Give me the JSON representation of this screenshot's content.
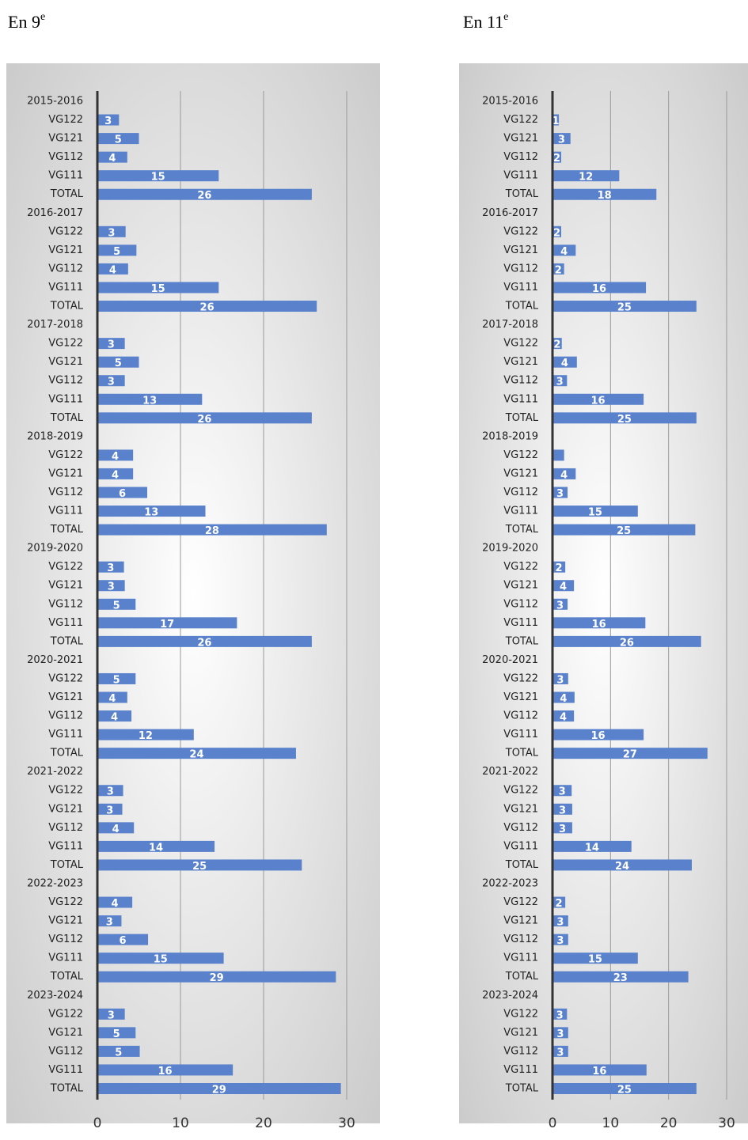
{
  "chart_data": [
    {
      "type": "bar",
      "orientation": "horizontal",
      "title": "En 9",
      "title_sup": "e",
      "color": "#5a82cc",
      "categories": [
        "2015-2016",
        "VG122",
        "VG121",
        "VG112",
        "VG111",
        "TOTAL",
        "2016-2017",
        "VG122",
        "VG121",
        "VG112",
        "VG111",
        "TOTAL",
        "2017-2018",
        "VG122",
        "VG121",
        "VG112",
        "VG111",
        "TOTAL",
        "2018-2019",
        "VG122",
        "VG121",
        "VG112",
        "VG111",
        "TOTAL",
        "2019-2020",
        "VG122",
        "VG121",
        "VG112",
        "VG111",
        "TOTAL",
        "2020-2021",
        "VG122",
        "VG121",
        "VG112",
        "VG111",
        "TOTAL",
        "2021-2022",
        "VG122",
        "VG121",
        "VG112",
        "VG111",
        "TOTAL",
        "2022-2023",
        "VG122",
        "VG121",
        "VG112",
        "VG111",
        "TOTAL",
        "2023-2024",
        "VG122",
        "VG121",
        "VG112",
        "VG111",
        "TOTAL"
      ],
      "values": [
        null,
        2.6,
        5.0,
        3.6,
        14.6,
        25.8,
        null,
        3.4,
        4.7,
        3.7,
        14.6,
        26.4,
        null,
        3.3,
        5.0,
        3.3,
        12.6,
        25.8,
        null,
        4.3,
        4.3,
        6.0,
        13.0,
        27.6,
        null,
        3.2,
        3.3,
        4.6,
        16.8,
        25.8,
        null,
        4.6,
        3.6,
        4.1,
        11.6,
        23.9,
        null,
        3.1,
        3.0,
        4.4,
        14.1,
        24.6,
        null,
        4.2,
        2.9,
        6.1,
        15.2,
        28.7,
        null,
        3.3,
        4.6,
        5.1,
        16.3,
        29.3
      ],
      "value_labels": [
        null,
        "3",
        "5",
        "4",
        "15",
        "26",
        null,
        "3",
        "5",
        "4",
        "15",
        "26",
        null,
        "3",
        "5",
        "3",
        "13",
        "26",
        null,
        "4",
        "4",
        "6",
        "13",
        "28",
        null,
        "3",
        "3",
        "5",
        "17",
        "26",
        null,
        "5",
        "4",
        "4",
        "12",
        "24",
        null,
        "3",
        "3",
        "4",
        "14",
        "25",
        null,
        "4",
        "3",
        "6",
        "15",
        "29",
        null,
        "3",
        "5",
        "5",
        "16",
        "29"
      ],
      "xlim": [
        0,
        30
      ],
      "xticks": [
        0,
        10,
        20,
        30
      ],
      "grid": true
    },
    {
      "type": "bar",
      "orientation": "horizontal",
      "title": "En 11",
      "title_sup": "e",
      "color": "#5a82cc",
      "categories": [
        "2015-2016",
        "VG122",
        "VG121",
        "VG112",
        "VG111",
        "TOTAL",
        "2016-2017",
        "VG122",
        "VG121",
        "VG112",
        "VG111",
        "TOTAL",
        "2017-2018",
        "VG122",
        "VG121",
        "VG112",
        "VG111",
        "TOTAL",
        "2018-2019",
        "VG122",
        "VG121",
        "VG112",
        "VG111",
        "TOTAL",
        "2019-2020",
        "VG122",
        "VG121",
        "VG112",
        "VG111",
        "TOTAL",
        "2020-2021",
        "VG122",
        "VG121",
        "VG112",
        "VG111",
        "TOTAL",
        "2021-2022",
        "VG122",
        "VG121",
        "VG112",
        "VG111",
        "TOTAL",
        "2022-2023",
        "VG122",
        "VG121",
        "VG112",
        "VG111",
        "TOTAL",
        "2023-2024",
        "VG122",
        "VG121",
        "VG112",
        "VG111",
        "TOTAL"
      ],
      "values": [
        null,
        1.1,
        3.1,
        1.5,
        11.5,
        17.9,
        null,
        1.5,
        4.0,
        2.0,
        16.1,
        24.8,
        null,
        1.6,
        4.2,
        2.5,
        15.7,
        24.8,
        null,
        2.0,
        4.0,
        2.6,
        14.7,
        24.6,
        null,
        2.2,
        3.7,
        2.6,
        16.0,
        25.6,
        null,
        2.7,
        3.8,
        3.7,
        15.7,
        26.7,
        null,
        3.3,
        3.4,
        3.4,
        13.6,
        24.0,
        null,
        2.2,
        2.7,
        2.7,
        14.7,
        23.4,
        null,
        2.5,
        2.7,
        2.7,
        16.2,
        24.8
      ],
      "value_labels": [
        null,
        "1",
        "3",
        "2",
        "12",
        "18",
        null,
        "2",
        "4",
        "2",
        "16",
        "25",
        null,
        "2",
        "4",
        "3",
        "16",
        "25",
        null,
        null,
        "4",
        "3",
        "15",
        "25",
        null,
        "2",
        "4",
        "3",
        "16",
        "26",
        null,
        "3",
        "4",
        "4",
        "16",
        "27",
        null,
        "3",
        "3",
        "3",
        "14",
        "24",
        null,
        "2",
        "3",
        "3",
        "15",
        "23",
        null,
        "3",
        "3",
        "3",
        "16",
        "25"
      ],
      "xlim": [
        0,
        30
      ],
      "xticks": [
        0,
        10,
        20,
        30
      ],
      "grid": true
    }
  ]
}
